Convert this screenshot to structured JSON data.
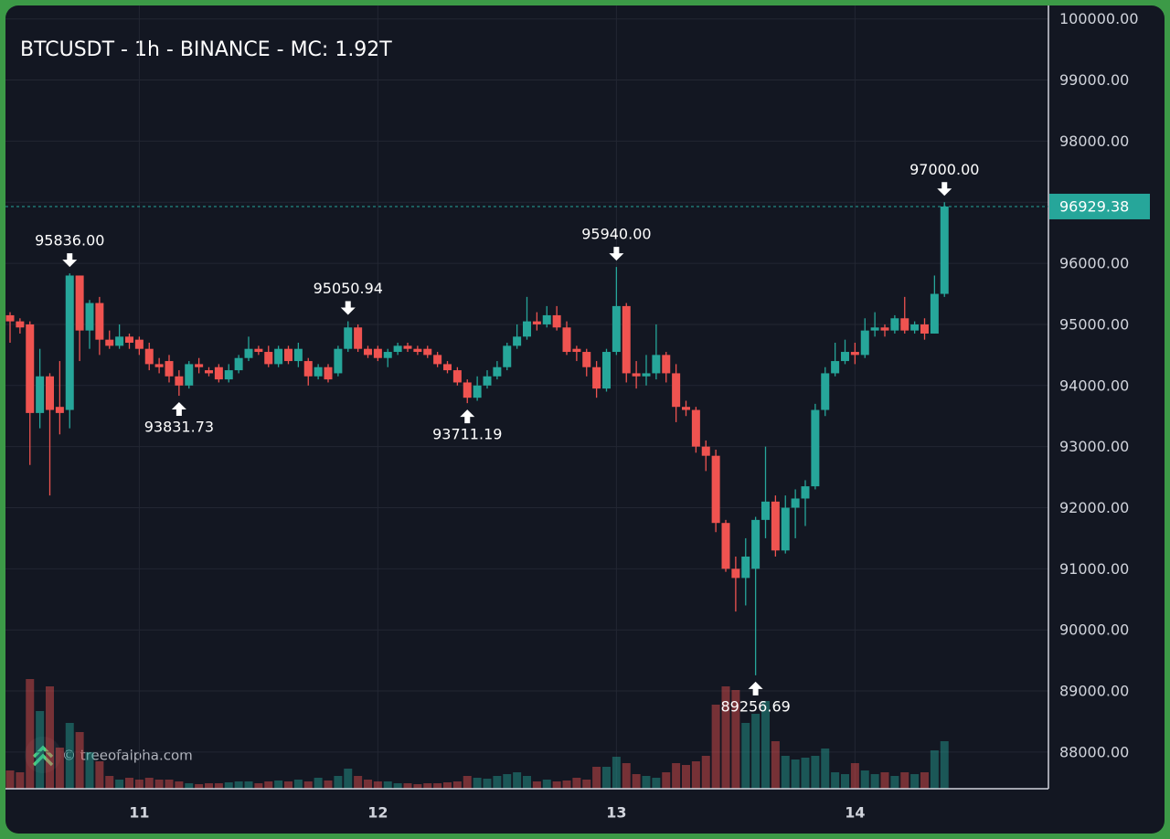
{
  "chart_data": {
    "type": "candlestick",
    "title": "BTCUSDT - 1h - BINANCE - MC: 1.92T",
    "watermark": "© treeofalpha.com",
    "categories": [
      null,
      null,
      null,
      null,
      null,
      null,
      null,
      null,
      null,
      null,
      null,
      null,
      null,
      "11",
      null,
      null,
      null,
      null,
      null,
      null,
      null,
      null,
      null,
      null,
      null,
      null,
      null,
      null,
      null,
      null,
      null,
      null,
      null,
      null,
      null,
      null,
      null,
      "12",
      null,
      null,
      null,
      null,
      null,
      null,
      null,
      null,
      null,
      null,
      null,
      null,
      null,
      null,
      null,
      null,
      null,
      null,
      null,
      null,
      null,
      null,
      null,
      "13",
      null,
      null,
      null,
      null,
      null,
      null,
      null,
      null,
      null,
      null,
      null,
      null,
      null,
      null,
      null,
      null,
      null,
      null,
      null,
      null,
      null,
      null,
      null,
      "14",
      null,
      null,
      null,
      null,
      null,
      null,
      null,
      null,
      null
    ],
    "open": [
      95150,
      95050,
      95000,
      93550,
      94150,
      93650,
      93600,
      95800,
      94900,
      95350,
      94750,
      94650,
      94800,
      94750,
      94600,
      94350,
      94400,
      94150,
      94000,
      94350,
      94250,
      94300,
      94100,
      94250,
      94450,
      94600,
      94550,
      94350,
      94600,
      94400,
      94400,
      94150,
      94300,
      94200,
      94600,
      94950,
      94600,
      94600,
      94450,
      94550,
      94650,
      94600,
      94600,
      94500,
      94350,
      94250,
      94050,
      93800,
      94000,
      94150,
      94300,
      94650,
      94800,
      95050,
      95000,
      95150,
      94950,
      94600,
      94550,
      94300,
      93950,
      94550,
      95300,
      94200,
      94150,
      94200,
      94500,
      94200,
      93650,
      93600,
      93000,
      92850,
      91750,
      91000,
      90850,
      91000,
      91800,
      92100,
      91300,
      92000,
      92150,
      92350,
      93600,
      94200,
      94400,
      94550,
      94500,
      94900,
      94950,
      94900,
      95100,
      94900,
      95000,
      94850,
      95500
    ],
    "high": [
      95200,
      95100,
      95050,
      94600,
      94200,
      94400,
      95836,
      95800,
      95400,
      95450,
      94900,
      95000,
      94850,
      94800,
      94700,
      94450,
      94500,
      94250,
      94400,
      94450,
      94300,
      94350,
      94350,
      94500,
      94800,
      94650,
      94650,
      94650,
      94650,
      94700,
      94450,
      94350,
      94350,
      94650,
      95050.94,
      95000,
      94650,
      94650,
      94600,
      94700,
      94700,
      94650,
      94650,
      94550,
      94400,
      94300,
      94100,
      94150,
      94250,
      94400,
      94700,
      95000,
      95450,
      95200,
      95300,
      95300,
      95050,
      94650,
      94600,
      94400,
      94600,
      95940,
      95350,
      94400,
      94500,
      95000,
      94550,
      94350,
      93750,
      93650,
      93100,
      92950,
      91800,
      91200,
      91500,
      91850,
      93000,
      92200,
      92200,
      92300,
      92450,
      93700,
      94300,
      94700,
      94750,
      94700,
      95100,
      95200,
      95000,
      95150,
      95450,
      95050,
      95100,
      95800,
      97000
    ],
    "low": [
      94700,
      94850,
      92700,
      93300,
      92200,
      93200,
      93300,
      94400,
      94600,
      94500,
      94600,
      94600,
      94600,
      94500,
      94250,
      94200,
      94050,
      93831.73,
      93950,
      94200,
      94150,
      94050,
      94050,
      94200,
      94400,
      94500,
      94300,
      94300,
      94350,
      94300,
      94000,
      94100,
      94050,
      94150,
      94550,
      94550,
      94450,
      94400,
      94300,
      94500,
      94550,
      94500,
      94450,
      94300,
      94200,
      94000,
      93711.19,
      93750,
      93950,
      94100,
      94250,
      94600,
      94750,
      94900,
      94950,
      94900,
      94500,
      94400,
      94150,
      93800,
      93900,
      94500,
      94050,
      93950,
      94000,
      94100,
      94050,
      93400,
      93500,
      92900,
      92600,
      91600,
      90950,
      90300,
      90400,
      89256.69,
      91500,
      91200,
      91250,
      91500,
      91700,
      92300,
      93500,
      94150,
      94350,
      94350,
      94450,
      94800,
      94800,
      94850,
      94850,
      94850,
      94750,
      94850,
      95450
    ],
    "close": [
      95050,
      94950,
      93550,
      94150,
      93600,
      93550,
      95800,
      94900,
      95350,
      94750,
      94650,
      94800,
      94700,
      94600,
      94350,
      94300,
      94150,
      94000,
      94350,
      94300,
      94200,
      94100,
      94250,
      94450,
      94600,
      94550,
      94350,
      94600,
      94400,
      94600,
      94150,
      94300,
      94100,
      94600,
      94950,
      94600,
      94500,
      94450,
      94550,
      94650,
      94600,
      94550,
      94500,
      94350,
      94250,
      94050,
      93800,
      94000,
      94150,
      94300,
      94650,
      94800,
      95050,
      95000,
      95150,
      94950,
      94550,
      94550,
      94300,
      93950,
      94550,
      95300,
      94200,
      94150,
      94200,
      94500,
      94200,
      93650,
      93600,
      93000,
      92850,
      91750,
      91000,
      90850,
      91200,
      91800,
      92100,
      91300,
      92000,
      92150,
      92350,
      93600,
      94200,
      94400,
      94550,
      94500,
      94900,
      94950,
      94900,
      95100,
      94900,
      95000,
      94850,
      95500,
      96929.38
    ],
    "volume": [
      20,
      18,
      120,
      85,
      112,
      45,
      72,
      62,
      40,
      30,
      14,
      10,
      12,
      10,
      12,
      10,
      10,
      8,
      6,
      5,
      6,
      6,
      7,
      8,
      8,
      6,
      8,
      9,
      8,
      10,
      8,
      12,
      9,
      14,
      22,
      14,
      10,
      8,
      8,
      6,
      6,
      5,
      6,
      6,
      7,
      8,
      14,
      12,
      11,
      14,
      16,
      18,
      14,
      8,
      10,
      8,
      9,
      12,
      10,
      24,
      24,
      35,
      28,
      16,
      14,
      12,
      18,
      28,
      26,
      30,
      36,
      92,
      112,
      108,
      72,
      82,
      96,
      52,
      36,
      32,
      34,
      36,
      44,
      18,
      16,
      28,
      20,
      16,
      18,
      14,
      18,
      16,
      18,
      42,
      52
    ],
    "up_color": "#26a69a",
    "down_color": "#ef5350",
    "ylim": [
      87400,
      100220
    ],
    "yticks": [
      {
        "value": 88000,
        "label": "88000.00"
      },
      {
        "value": 89000,
        "label": "89000.00"
      },
      {
        "value": 90000,
        "label": "90000.00"
      },
      {
        "value": 91000,
        "label": "91000.00"
      },
      {
        "value": 92000,
        "label": "92000.00"
      },
      {
        "value": 93000,
        "label": "93000.00"
      },
      {
        "value": 94000,
        "label": "94000.00"
      },
      {
        "value": 95000,
        "label": "95000.00"
      },
      {
        "value": 96000,
        "label": "96000.00"
      },
      {
        "value": 97000,
        "label": "97000.00"
      },
      {
        "value": 98000,
        "label": "98000.00"
      },
      {
        "value": 99000,
        "label": "99000.00"
      },
      {
        "value": 100000,
        "label": "100000.00"
      }
    ],
    "grid": true,
    "last_price": {
      "value": 96929.38,
      "label": "96929.38"
    },
    "annotations": [
      {
        "candle": 6,
        "value": 95836,
        "label": "95836.00",
        "position": "above"
      },
      {
        "candle": 17,
        "value": 93831.73,
        "label": "93831.73",
        "position": "below"
      },
      {
        "candle": 34,
        "value": 95050.94,
        "label": "95050.94",
        "position": "above"
      },
      {
        "candle": 46,
        "value": 93711.19,
        "label": "93711.19",
        "position": "below"
      },
      {
        "candle": 61,
        "value": 95940,
        "label": "95940.00",
        "position": "above"
      },
      {
        "candle": 75,
        "value": 89256.69,
        "label": "89256.69",
        "position": "below"
      },
      {
        "candle": 94,
        "value": 97000,
        "label": "97000.00",
        "position": "above"
      }
    ]
  }
}
